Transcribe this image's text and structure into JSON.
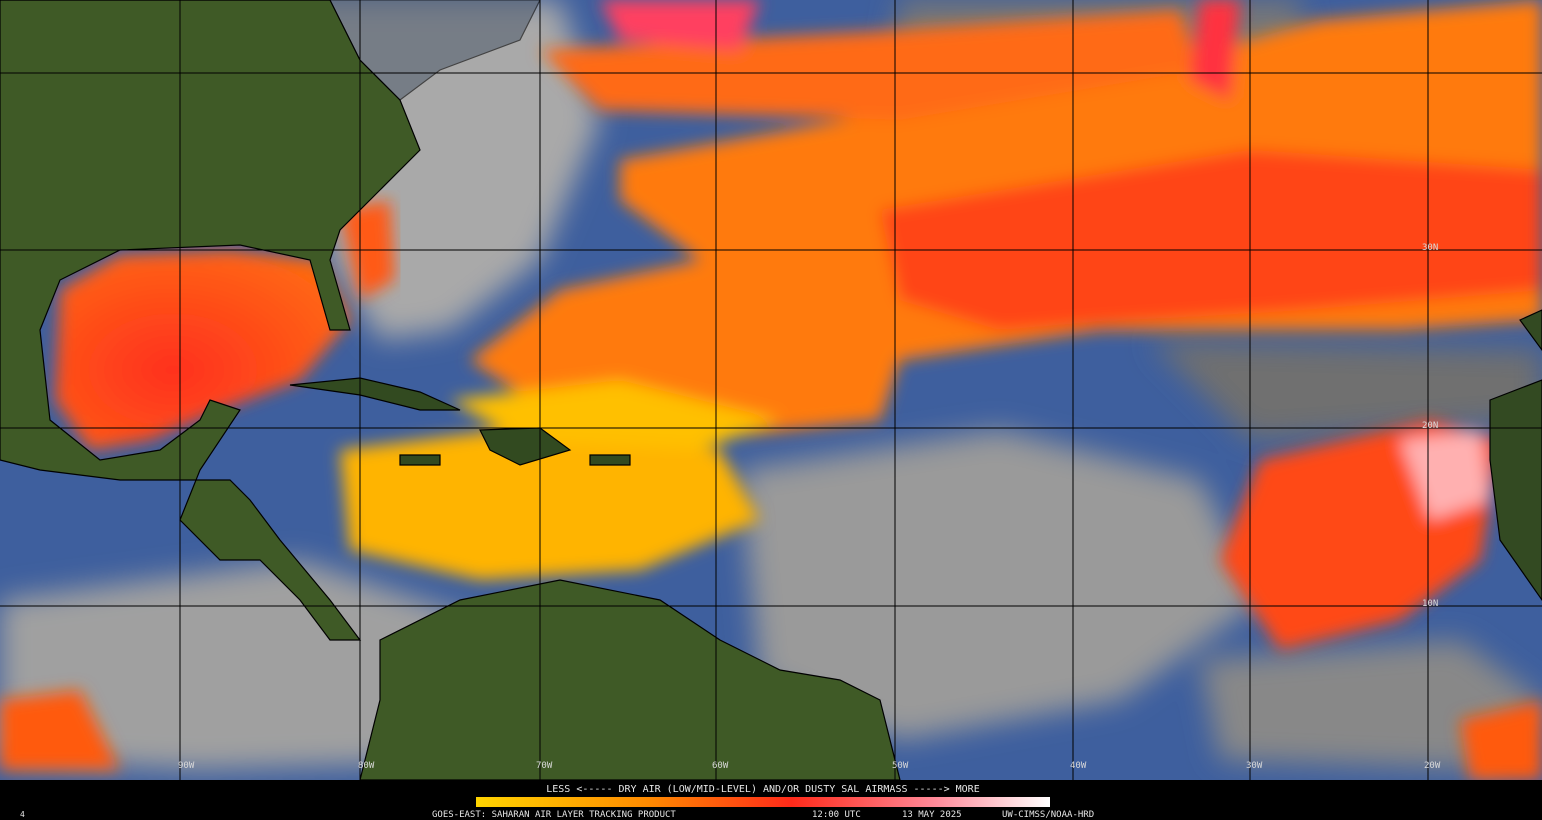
{
  "map": {
    "longitude_labels": [
      "90W",
      "80W",
      "70W",
      "60W",
      "50W",
      "40W",
      "30W",
      "20W"
    ],
    "latitude_labels": [
      "30N",
      "20N",
      "10N"
    ]
  },
  "legend": {
    "text": "LESS <----- DRY AIR (LOW/MID-LEVEL) AND/OR DUSTY SAL AIRMASS -----> MORE"
  },
  "footer": {
    "product": "GOES-EAST: SAHARAN AIR LAYER TRACKING PRODUCT",
    "time": "12:00 UTC",
    "date": "13 MAY 2025",
    "credit": "UW-CIMSS/NOAA-HRD",
    "frame": "4"
  }
}
